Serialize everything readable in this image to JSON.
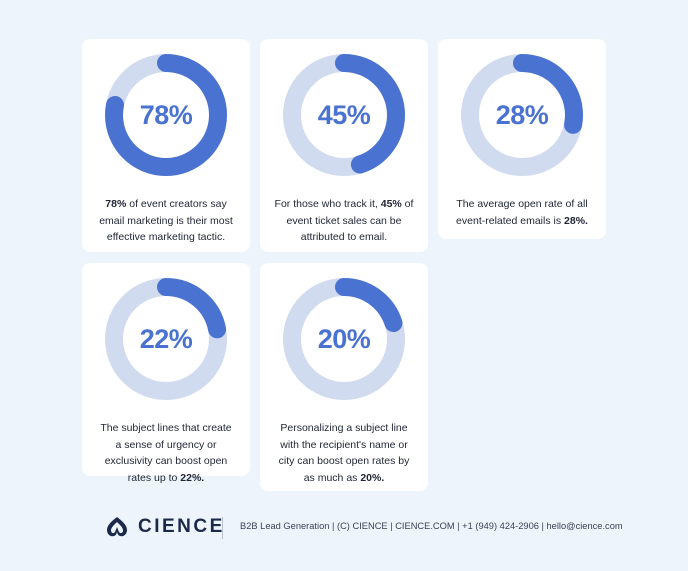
{
  "chart_data": [
    {
      "type": "pie",
      "value": 78,
      "label": "78%",
      "text_before": "",
      "highlight": "78%",
      "text_after": " of event creators say email marketing is their most effective marketing tactic."
    },
    {
      "type": "pie",
      "value": 45,
      "label": "45%",
      "text_before": "For those who track it, ",
      "highlight": "45%",
      "text_after": " of event ticket sales can be attributed to email."
    },
    {
      "type": "pie",
      "value": 28,
      "label": "28%",
      "text_before": "The average open rate of all event-related emails is ",
      "highlight": "28%.",
      "text_after": ""
    },
    {
      "type": "pie",
      "value": 22,
      "label": "22%",
      "text_before": "The subject lines that create a sense of urgency or exclusivity can boost open rates up to ",
      "highlight": "22%.",
      "text_after": ""
    },
    {
      "type": "pie",
      "value": 20,
      "label": "20%",
      "text_before": "Personalizing a subject line with the recipient's name or city can boost open rates by as much as ",
      "highlight": "20%.",
      "text_after": ""
    }
  ],
  "colors": {
    "ring_fill": "#4a72d0",
    "ring_track": "#d0dbef"
  },
  "footer": {
    "brand": "CIENCE",
    "text": "B2B Lead Generation | (C) CIENCE | CIENCE.COM | +1 (949) 424-2906 | hello@cience.com"
  }
}
